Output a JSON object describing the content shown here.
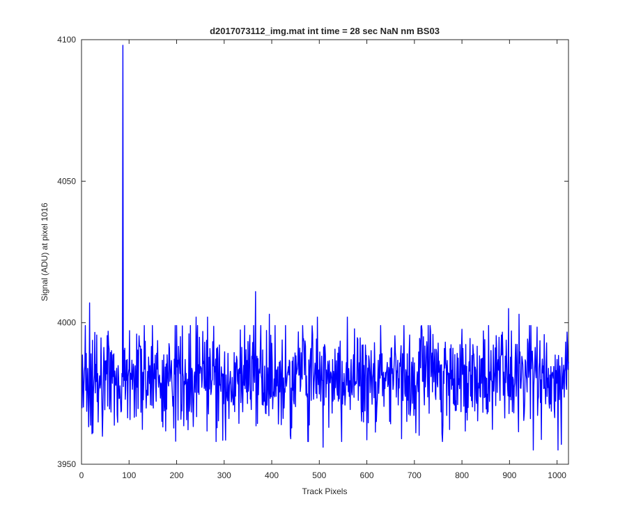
{
  "chart_data": {
    "type": "line",
    "title": "d2017073112_img.mat int time = 28 sec  NaN nm BS03",
    "xlabel": "Track Pixels",
    "ylabel": "Signal (ADU) at pixel 1016",
    "xlim": [
      0,
      1024
    ],
    "ylim": [
      3950,
      4100
    ],
    "xticks": [
      0,
      100,
      200,
      300,
      400,
      500,
      600,
      700,
      800,
      900,
      1000
    ],
    "yticks": [
      3950,
      4000,
      4050,
      4100
    ],
    "grid": false,
    "series": [
      {
        "color": "#0000ff",
        "generated_from": "baseline noise around 3981 ADU (roughly 3955–4011) with a single spike of 4098 at x = 87",
        "baseline": 3981,
        "noise_amplitude": 9,
        "noise_seed": 20170731,
        "n_points": 1024,
        "min": 3955,
        "max": 4098,
        "peaks": [
          {
            "x": 87,
            "y": 4098
          },
          {
            "x": 17,
            "y": 4007
          },
          {
            "x": 366,
            "y": 4011
          },
          {
            "x": 898,
            "y": 4005
          },
          {
            "x": 920,
            "y": 4003
          },
          {
            "x": 241,
            "y": 4002
          },
          {
            "x": 395,
            "y": 4003
          },
          {
            "x": 496,
            "y": 4002
          },
          {
            "x": 265,
            "y": 4002
          },
          {
            "x": 559,
            "y": 4002
          }
        ],
        "troughs": [
          {
            "x": 508,
            "y": 3956
          },
          {
            "x": 1002,
            "y": 3955
          },
          {
            "x": 950,
            "y": 3955
          },
          {
            "x": 283,
            "y": 3958
          },
          {
            "x": 759,
            "y": 3958
          },
          {
            "x": 477,
            "y": 3958
          },
          {
            "x": 440,
            "y": 3959
          },
          {
            "x": 673,
            "y": 3959
          },
          {
            "x": 1009,
            "y": 3957
          }
        ]
      }
    ]
  }
}
